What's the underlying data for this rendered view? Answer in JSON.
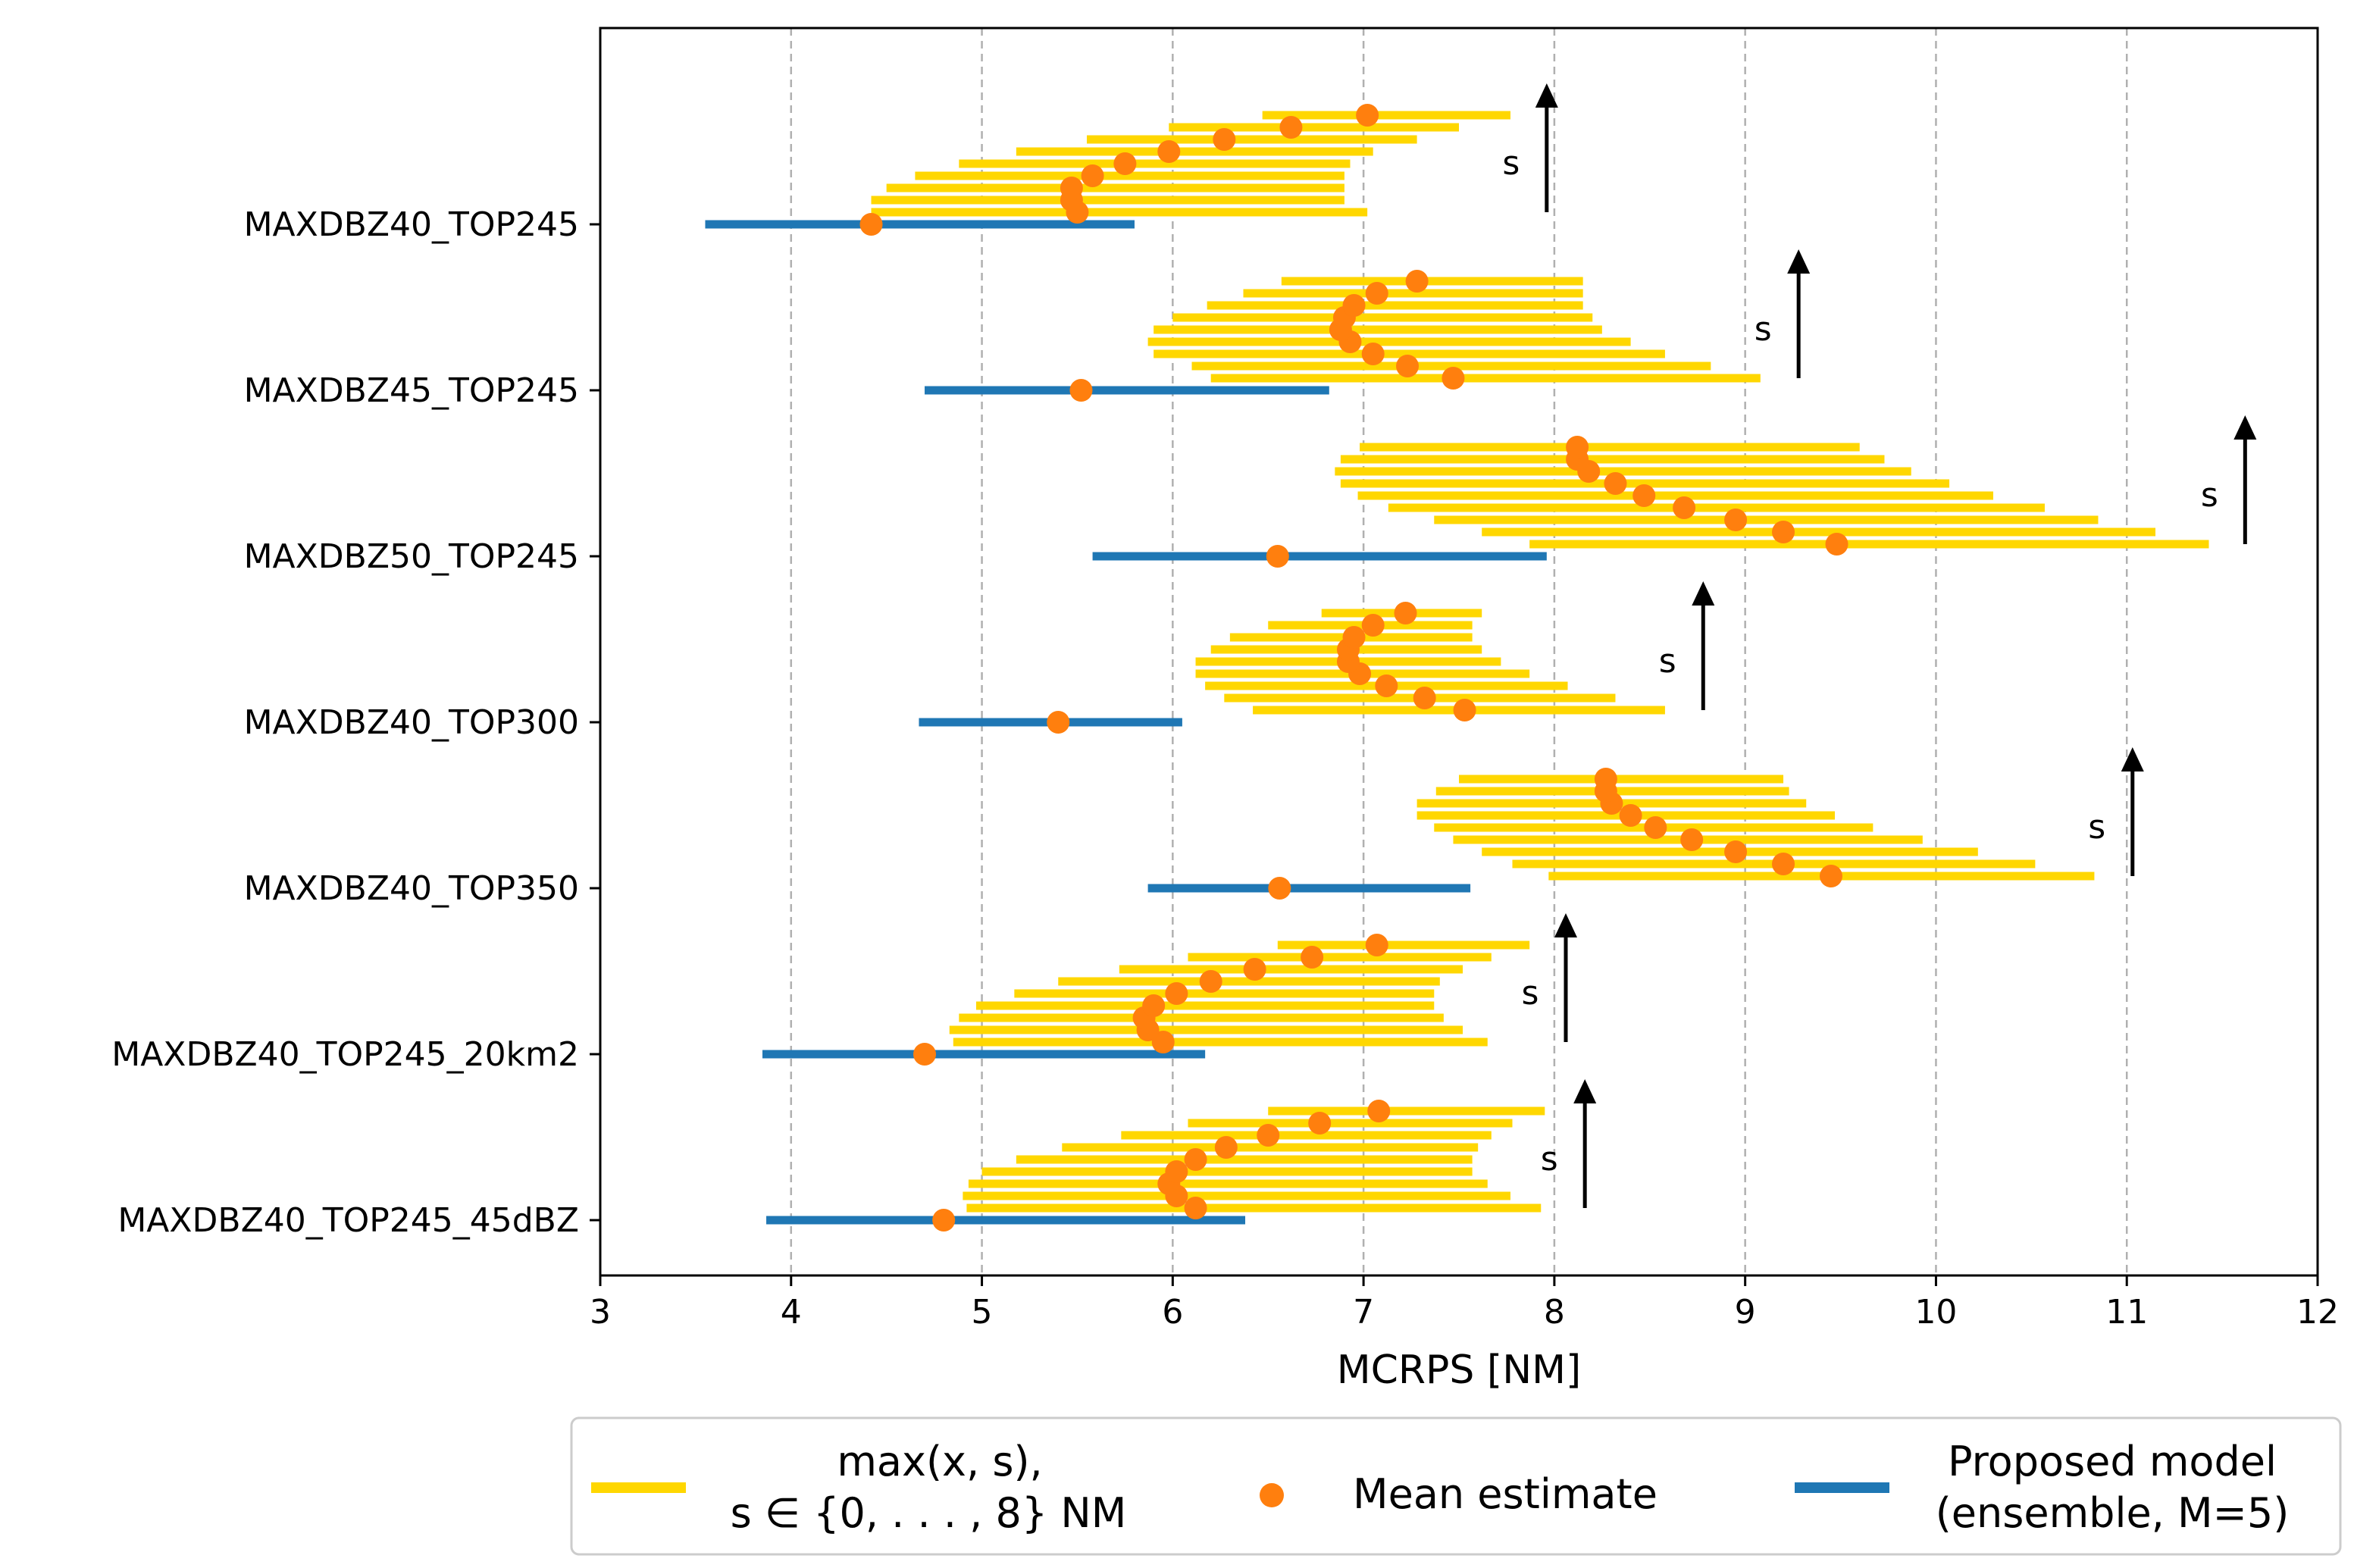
{
  "chart_data": {
    "type": "range-bar",
    "xlabel": "MCRPS [NM]",
    "xlim": [
      3,
      12
    ],
    "xticks": [
      "3",
      "4",
      "5",
      "6",
      "7",
      "8",
      "9",
      "10",
      "11",
      "12"
    ],
    "grid": "vertical dashed",
    "arrow_label": "s",
    "categories": [
      "MAXDBZ40_TOP245",
      "MAXDBZ45_TOP245",
      "MAXDBZ50_TOP245",
      "MAXDBZ40_TOP300",
      "MAXDBZ40_TOP350",
      "MAXDBZ40_TOP245_20km2",
      "MAXDBZ40_TOP245_45dBZ"
    ],
    "colors": {
      "range": "#FFD700",
      "mean": "#FF7F0E",
      "proposed": "#1F77B4",
      "arrow": "#000000"
    },
    "legend": {
      "placement": "bottom",
      "entries": [
        {
          "line1": "max(x, s),",
          "line2": "s ∈ {0, . . . , 8} NM"
        },
        {
          "line1": "Mean estimate"
        },
        {
          "line1": "Proposed model",
          "line2": "(ensemble, M=5)"
        }
      ]
    },
    "groups": [
      {
        "proposed": {
          "lo": 3.55,
          "hi": 5.8,
          "mean": 4.42
        },
        "ranges": [
          {
            "lo": 4.42,
            "hi": 7.02,
            "mean": 5.5
          },
          {
            "lo": 4.42,
            "hi": 6.9,
            "mean": 5.47
          },
          {
            "lo": 4.5,
            "hi": 6.9,
            "mean": 5.47
          },
          {
            "lo": 4.65,
            "hi": 6.9,
            "mean": 5.58
          },
          {
            "lo": 4.88,
            "hi": 6.93,
            "mean": 5.75
          },
          {
            "lo": 5.18,
            "hi": 7.05,
            "mean": 5.98
          },
          {
            "lo": 5.55,
            "hi": 7.28,
            "mean": 6.27
          },
          {
            "lo": 5.98,
            "hi": 7.5,
            "mean": 6.62
          },
          {
            "lo": 6.47,
            "hi": 7.77,
            "mean": 7.02
          }
        ],
        "arrow_x": 7.96
      },
      {
        "proposed": {
          "lo": 4.7,
          "hi": 6.82,
          "mean": 5.52
        },
        "ranges": [
          {
            "lo": 6.2,
            "hi": 9.08,
            "mean": 7.47
          },
          {
            "lo": 6.1,
            "hi": 8.82,
            "mean": 7.23
          },
          {
            "lo": 5.9,
            "hi": 8.58,
            "mean": 7.05
          },
          {
            "lo": 5.87,
            "hi": 8.4,
            "mean": 6.93
          },
          {
            "lo": 5.9,
            "hi": 8.25,
            "mean": 6.88
          },
          {
            "lo": 6.0,
            "hi": 8.2,
            "mean": 6.9
          },
          {
            "lo": 6.18,
            "hi": 8.15,
            "mean": 6.95
          },
          {
            "lo": 6.37,
            "hi": 8.15,
            "mean": 7.07
          },
          {
            "lo": 6.57,
            "hi": 8.15,
            "mean": 7.28
          }
        ],
        "arrow_x": 9.28
      },
      {
        "proposed": {
          "lo": 5.58,
          "hi": 7.96,
          "mean": 6.55
        },
        "ranges": [
          {
            "lo": 7.87,
            "hi": 11.43,
            "mean": 9.48
          },
          {
            "lo": 7.62,
            "hi": 11.15,
            "mean": 9.2
          },
          {
            "lo": 7.37,
            "hi": 10.85,
            "mean": 8.95
          },
          {
            "lo": 7.13,
            "hi": 10.57,
            "mean": 8.68
          },
          {
            "lo": 6.97,
            "hi": 10.3,
            "mean": 8.47
          },
          {
            "lo": 6.88,
            "hi": 10.07,
            "mean": 8.32
          },
          {
            "lo": 6.85,
            "hi": 9.87,
            "mean": 8.18
          },
          {
            "lo": 6.88,
            "hi": 9.73,
            "mean": 8.12
          },
          {
            "lo": 6.98,
            "hi": 9.6,
            "mean": 8.12
          }
        ],
        "arrow_x": 11.62
      },
      {
        "proposed": {
          "lo": 4.67,
          "hi": 6.05,
          "mean": 5.4
        },
        "ranges": [
          {
            "lo": 6.42,
            "hi": 8.58,
            "mean": 7.53
          },
          {
            "lo": 6.27,
            "hi": 8.32,
            "mean": 7.32
          },
          {
            "lo": 6.17,
            "hi": 8.07,
            "mean": 7.12
          },
          {
            "lo": 6.12,
            "hi": 7.87,
            "mean": 6.98
          },
          {
            "lo": 6.12,
            "hi": 7.72,
            "mean": 6.92
          },
          {
            "lo": 6.2,
            "hi": 7.62,
            "mean": 6.92
          },
          {
            "lo": 6.3,
            "hi": 7.57,
            "mean": 6.95
          },
          {
            "lo": 6.5,
            "hi": 7.57,
            "mean": 7.05
          },
          {
            "lo": 6.78,
            "hi": 7.62,
            "mean": 7.22
          }
        ],
        "arrow_x": 8.78
      },
      {
        "proposed": {
          "lo": 5.87,
          "hi": 7.56,
          "mean": 6.56
        },
        "ranges": [
          {
            "lo": 7.97,
            "hi": 10.83,
            "mean": 9.45
          },
          {
            "lo": 7.78,
            "hi": 10.52,
            "mean": 9.2
          },
          {
            "lo": 7.62,
            "hi": 10.22,
            "mean": 8.95
          },
          {
            "lo": 7.47,
            "hi": 9.93,
            "mean": 8.72
          },
          {
            "lo": 7.37,
            "hi": 9.67,
            "mean": 8.53
          },
          {
            "lo": 7.28,
            "hi": 9.47,
            "mean": 8.4
          },
          {
            "lo": 7.28,
            "hi": 9.32,
            "mean": 8.3
          },
          {
            "lo": 7.38,
            "hi": 9.23,
            "mean": 8.27
          },
          {
            "lo": 7.5,
            "hi": 9.2,
            "mean": 8.27
          }
        ],
        "arrow_x": 11.03
      },
      {
        "proposed": {
          "lo": 3.85,
          "hi": 6.17,
          "mean": 4.7
        },
        "ranges": [
          {
            "lo": 4.85,
            "hi": 7.65,
            "mean": 5.95
          },
          {
            "lo": 4.83,
            "hi": 7.52,
            "mean": 5.87
          },
          {
            "lo": 4.88,
            "hi": 7.42,
            "mean": 5.85
          },
          {
            "lo": 4.97,
            "hi": 7.37,
            "mean": 5.9
          },
          {
            "lo": 5.17,
            "hi": 7.37,
            "mean": 6.02
          },
          {
            "lo": 5.4,
            "hi": 7.4,
            "mean": 6.2
          },
          {
            "lo": 5.72,
            "hi": 7.52,
            "mean": 6.43
          },
          {
            "lo": 6.08,
            "hi": 7.67,
            "mean": 6.73
          },
          {
            "lo": 6.55,
            "hi": 7.87,
            "mean": 7.07
          }
        ],
        "arrow_x": 8.06
      },
      {
        "proposed": {
          "lo": 3.87,
          "hi": 6.38,
          "mean": 4.8
        },
        "ranges": [
          {
            "lo": 4.92,
            "hi": 7.93,
            "mean": 6.12
          },
          {
            "lo": 4.9,
            "hi": 7.77,
            "mean": 6.02
          },
          {
            "lo": 4.93,
            "hi": 7.65,
            "mean": 5.98
          },
          {
            "lo": 5.0,
            "hi": 7.57,
            "mean": 6.02
          },
          {
            "lo": 5.18,
            "hi": 7.57,
            "mean": 6.12
          },
          {
            "lo": 5.42,
            "hi": 7.6,
            "mean": 6.28
          },
          {
            "lo": 5.73,
            "hi": 7.67,
            "mean": 6.5
          },
          {
            "lo": 6.08,
            "hi": 7.78,
            "mean": 6.77
          },
          {
            "lo": 6.5,
            "hi": 7.95,
            "mean": 7.08
          }
        ],
        "arrow_x": 8.16
      }
    ]
  }
}
